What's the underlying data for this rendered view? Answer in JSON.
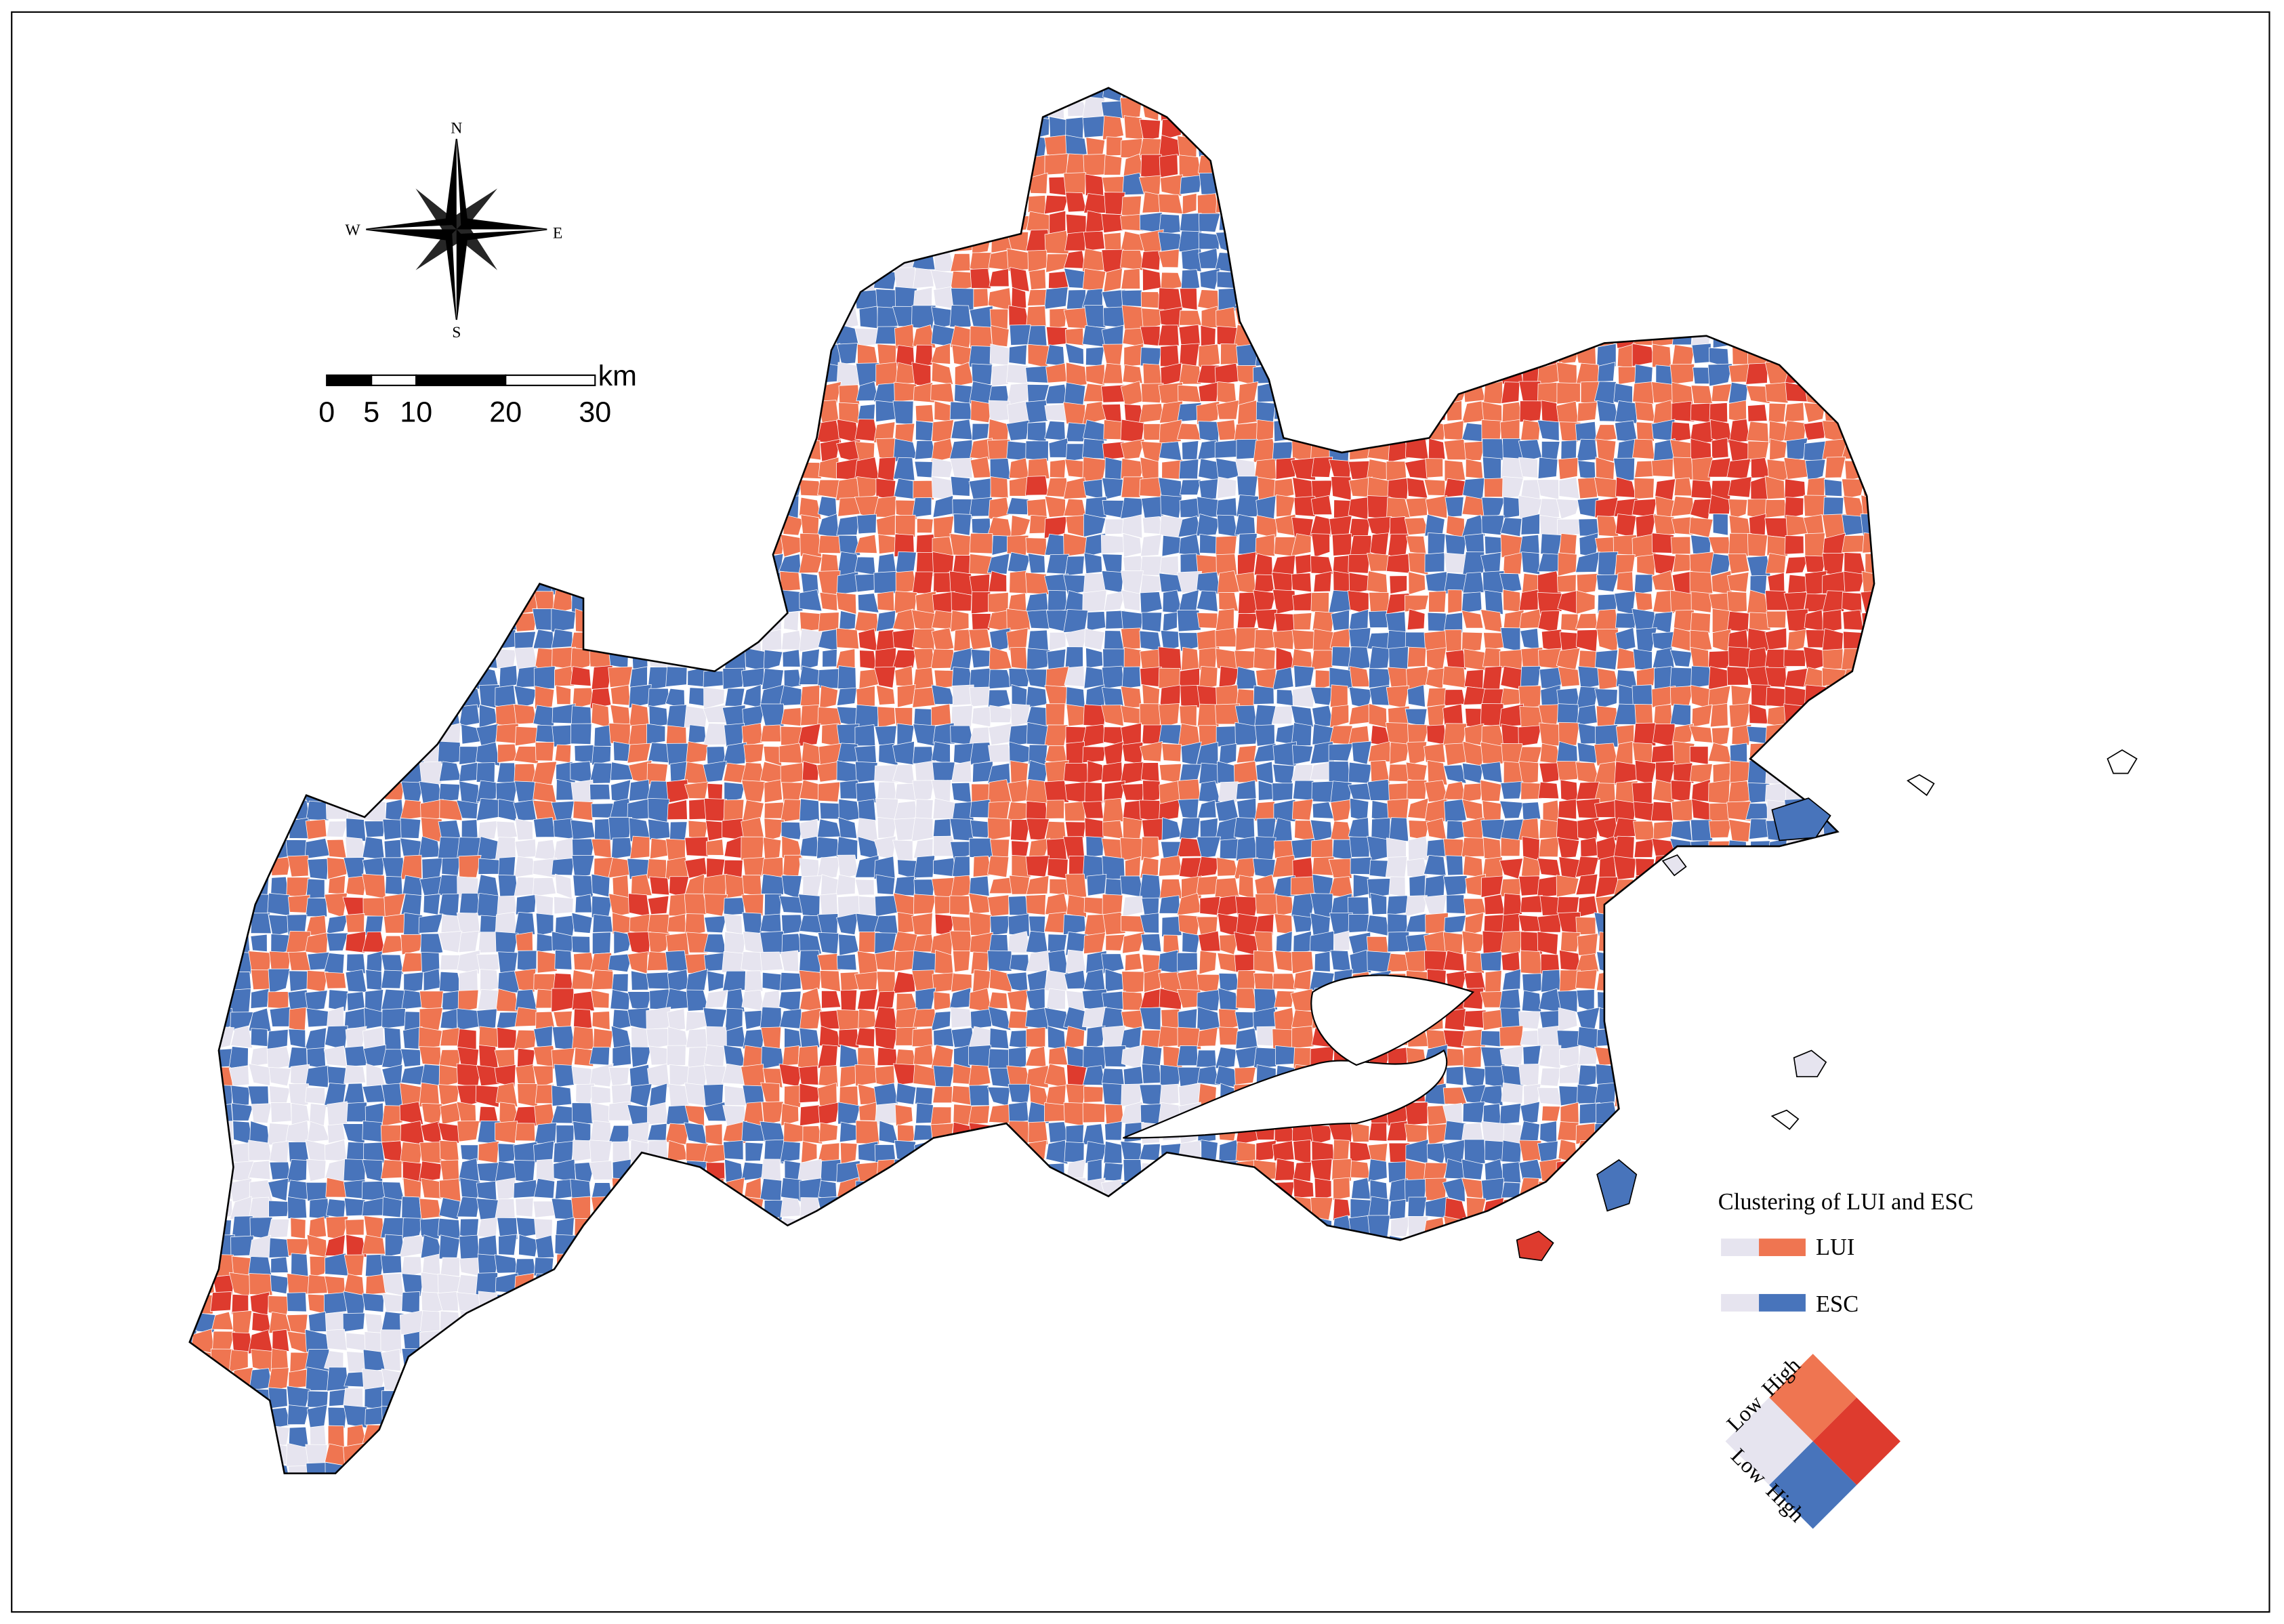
{
  "compass": {
    "north": "N",
    "west": "W",
    "east": "E",
    "south": "S"
  },
  "scale_bar": {
    "unit": "km",
    "ticks": [
      0,
      5,
      10,
      20,
      30
    ]
  },
  "legend": {
    "title": "Clustering of LUI and ESC",
    "items": [
      {
        "label": "LUI"
      },
      {
        "label": "ESC"
      }
    ],
    "axes": [
      {
        "low": "Low",
        "high": "High"
      },
      {
        "low": "Low",
        "high": "High"
      }
    ]
  }
}
